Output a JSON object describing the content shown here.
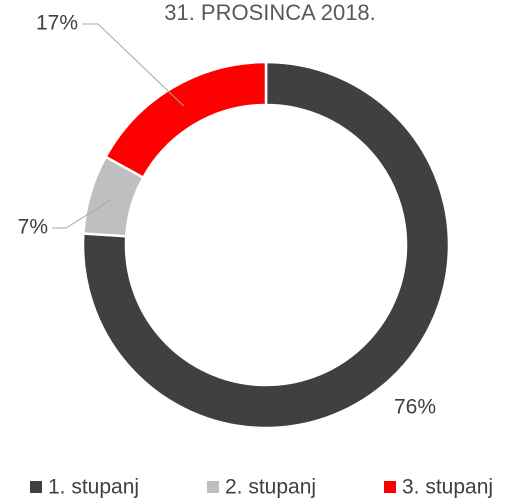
{
  "chart_data": {
    "type": "donut",
    "title": "31. PROSINCA 2018.",
    "categories": [
      "1. stupanj",
      "2. stupanj",
      "3. stupanj"
    ],
    "values": [
      76,
      7,
      17
    ],
    "value_labels": [
      "76%",
      "7%",
      "17%"
    ],
    "colors": [
      "#404040",
      "#bfbfbf",
      "#ff0000"
    ],
    "legend": "bottom"
  }
}
